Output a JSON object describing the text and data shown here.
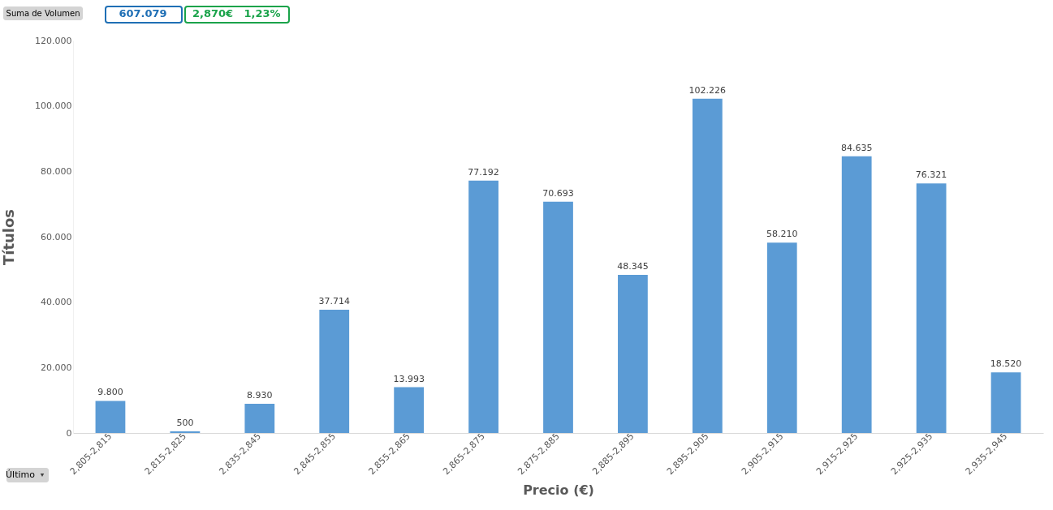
{
  "chart_data": {
    "type": "bar",
    "xlabel": "Precio (€)",
    "ylabel": "Títulos",
    "categories": [
      "2,805-2,815",
      "2,815-2,825",
      "2,835-2,845",
      "2,845-2,855",
      "2,855-2,865",
      "2,865-2,875",
      "2,875-2,885",
      "2,885-2,895",
      "2,895-2,905",
      "2,905-2,915",
      "2,915-2,925",
      "2,925-2,935",
      "2,935-2,945"
    ],
    "values": [
      9800,
      500,
      8930,
      37714,
      13993,
      77192,
      70693,
      48345,
      102226,
      58210,
      84635,
      76321,
      18520
    ],
    "value_labels": [
      "9.800",
      "500",
      "8.930",
      "37.714",
      "13.993",
      "77.192",
      "70.693",
      "48.345",
      "102.226",
      "58.210",
      "84.635",
      "76.321",
      "18.520"
    ],
    "color": "#5b9bd5",
    "ylim": [
      0,
      120000
    ],
    "yticks": [
      0,
      {
        "value": 20000,
        "label": "20.000"
      },
      {
        "value": 40000,
        "label": "40.000"
      },
      {
        "value": 60000,
        "label": "60.000"
      },
      {
        "value": 80000,
        "label": "80.000"
      },
      {
        "value": 100000,
        "label": "100.000"
      },
      {
        "value": 120000,
        "label": "120.000"
      }
    ],
    "grid": false,
    "annotations": [
      "Suma de Volumen",
      "607.079",
      "2,870€",
      "1,23%",
      "Último"
    ]
  }
}
